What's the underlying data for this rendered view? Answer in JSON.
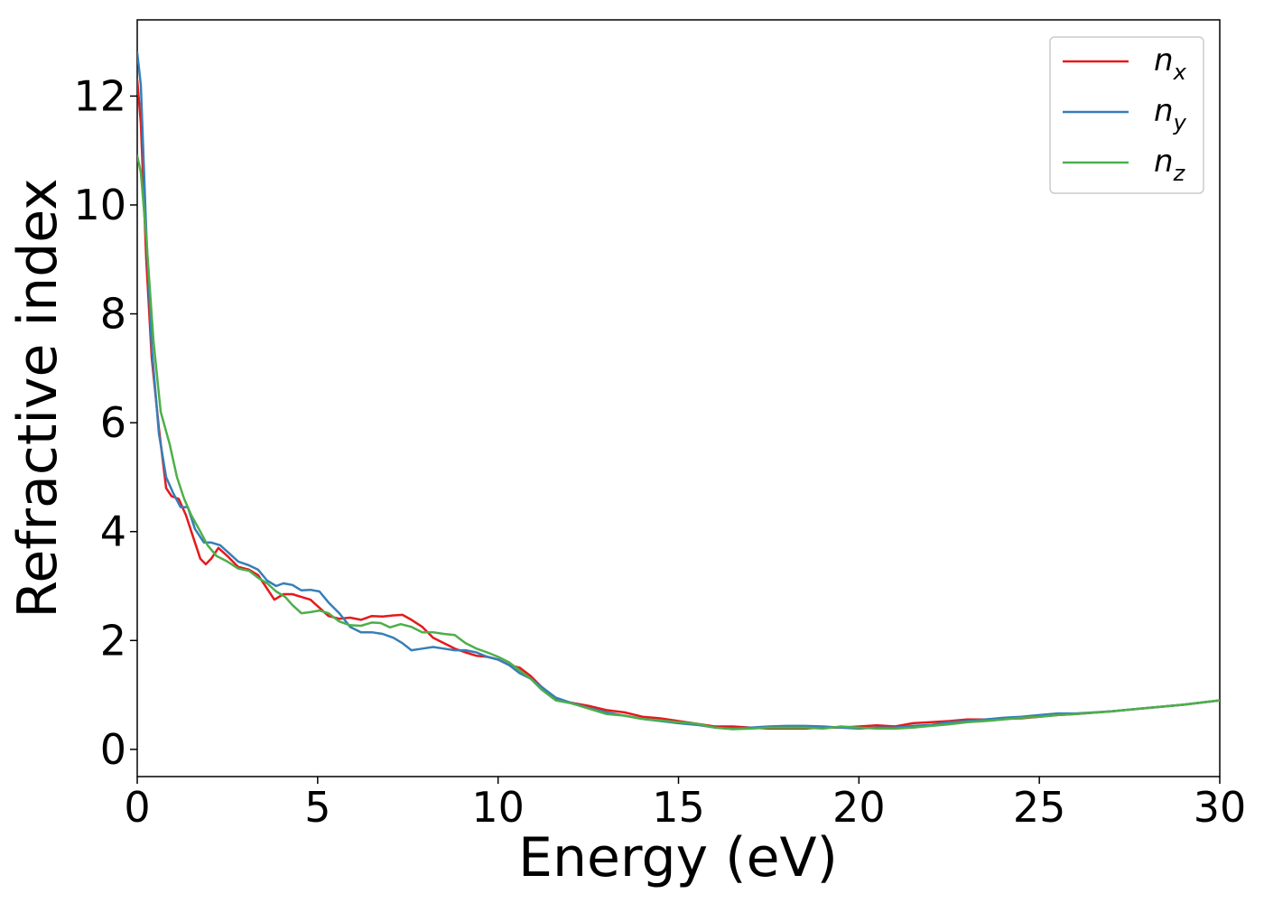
{
  "chart_data": {
    "type": "line",
    "title": "",
    "xlabel": "Energy (eV)",
    "ylabel": "Refractive index",
    "xlim": [
      0,
      30
    ],
    "ylim": [
      -0.5,
      13.4
    ],
    "xticks": [
      0,
      5,
      10,
      15,
      20,
      25,
      30
    ],
    "yticks": [
      0,
      2,
      4,
      6,
      8,
      10,
      12
    ],
    "grid": false,
    "legend_position": "top-right",
    "series": [
      {
        "name": "n",
        "subscript": "x",
        "color": "#e41a1c",
        "points": [
          [
            0,
            12.3
          ],
          [
            0.1,
            11.5
          ],
          [
            0.25,
            9.0
          ],
          [
            0.4,
            7.2
          ],
          [
            0.6,
            5.9
          ],
          [
            0.8,
            4.8
          ],
          [
            0.95,
            4.65
          ],
          [
            1.15,
            4.6
          ],
          [
            1.35,
            4.3
          ],
          [
            1.55,
            3.9
          ],
          [
            1.75,
            3.5
          ],
          [
            1.9,
            3.4
          ],
          [
            2.05,
            3.5
          ],
          [
            2.25,
            3.7
          ],
          [
            2.5,
            3.55
          ],
          [
            2.8,
            3.35
          ],
          [
            3.1,
            3.3
          ],
          [
            3.35,
            3.2
          ],
          [
            3.6,
            2.95
          ],
          [
            3.8,
            2.75
          ],
          [
            4.05,
            2.85
          ],
          [
            4.3,
            2.85
          ],
          [
            4.55,
            2.8
          ],
          [
            4.8,
            2.75
          ],
          [
            5.05,
            2.6
          ],
          [
            5.3,
            2.45
          ],
          [
            5.6,
            2.4
          ],
          [
            5.9,
            2.42
          ],
          [
            6.2,
            2.38
          ],
          [
            6.5,
            2.45
          ],
          [
            6.8,
            2.44
          ],
          [
            7.1,
            2.46
          ],
          [
            7.35,
            2.47
          ],
          [
            7.6,
            2.38
          ],
          [
            7.9,
            2.25
          ],
          [
            8.2,
            2.05
          ],
          [
            8.5,
            1.95
          ],
          [
            8.8,
            1.85
          ],
          [
            9.1,
            1.78
          ],
          [
            9.4,
            1.72
          ],
          [
            9.7,
            1.7
          ],
          [
            10.0,
            1.65
          ],
          [
            10.3,
            1.55
          ],
          [
            10.6,
            1.5
          ],
          [
            10.9,
            1.35
          ],
          [
            11.2,
            1.15
          ],
          [
            11.6,
            0.92
          ],
          [
            12.0,
            0.86
          ],
          [
            12.5,
            0.8
          ],
          [
            13.0,
            0.72
          ],
          [
            13.5,
            0.68
          ],
          [
            14.0,
            0.6
          ],
          [
            14.5,
            0.57
          ],
          [
            15.0,
            0.52
          ],
          [
            15.5,
            0.47
          ],
          [
            16.0,
            0.42
          ],
          [
            16.5,
            0.42
          ],
          [
            17.0,
            0.4
          ],
          [
            17.5,
            0.38
          ],
          [
            18.0,
            0.38
          ],
          [
            18.5,
            0.38
          ],
          [
            19.0,
            0.4
          ],
          [
            19.5,
            0.4
          ],
          [
            20.0,
            0.42
          ],
          [
            20.5,
            0.44
          ],
          [
            21.0,
            0.42
          ],
          [
            21.5,
            0.48
          ],
          [
            22.0,
            0.5
          ],
          [
            22.5,
            0.52
          ],
          [
            23.0,
            0.55
          ],
          [
            23.5,
            0.55
          ],
          [
            24.0,
            0.56
          ],
          [
            24.5,
            0.57
          ],
          [
            25.0,
            0.6
          ],
          [
            25.5,
            0.63
          ],
          [
            26.0,
            0.65
          ],
          [
            27.0,
            0.7
          ],
          [
            28.0,
            0.76
          ],
          [
            29.0,
            0.82
          ],
          [
            30.0,
            0.9
          ]
        ]
      },
      {
        "name": "n",
        "subscript": "y",
        "color": "#377eb8",
        "points": [
          [
            0,
            12.8
          ],
          [
            0.1,
            12.2
          ],
          [
            0.25,
            9.5
          ],
          [
            0.4,
            7.4
          ],
          [
            0.6,
            5.8
          ],
          [
            0.8,
            5.0
          ],
          [
            1.0,
            4.7
          ],
          [
            1.2,
            4.45
          ],
          [
            1.4,
            4.45
          ],
          [
            1.6,
            4.05
          ],
          [
            1.85,
            3.8
          ],
          [
            2.05,
            3.8
          ],
          [
            2.3,
            3.75
          ],
          [
            2.55,
            3.6
          ],
          [
            2.8,
            3.45
          ],
          [
            3.1,
            3.38
          ],
          [
            3.35,
            3.3
          ],
          [
            3.6,
            3.1
          ],
          [
            3.85,
            3.0
          ],
          [
            4.05,
            3.05
          ],
          [
            4.3,
            3.02
          ],
          [
            4.55,
            2.92
          ],
          [
            4.8,
            2.93
          ],
          [
            5.05,
            2.9
          ],
          [
            5.3,
            2.7
          ],
          [
            5.6,
            2.5
          ],
          [
            5.9,
            2.25
          ],
          [
            6.2,
            2.15
          ],
          [
            6.5,
            2.15
          ],
          [
            6.8,
            2.12
          ],
          [
            7.1,
            2.05
          ],
          [
            7.35,
            1.95
          ],
          [
            7.6,
            1.82
          ],
          [
            7.9,
            1.85
          ],
          [
            8.2,
            1.88
          ],
          [
            8.5,
            1.85
          ],
          [
            8.8,
            1.82
          ],
          [
            9.1,
            1.82
          ],
          [
            9.4,
            1.78
          ],
          [
            9.7,
            1.7
          ],
          [
            10.0,
            1.65
          ],
          [
            10.3,
            1.55
          ],
          [
            10.6,
            1.4
          ],
          [
            10.9,
            1.3
          ],
          [
            11.2,
            1.15
          ],
          [
            11.6,
            0.95
          ],
          [
            12.0,
            0.86
          ],
          [
            12.5,
            0.76
          ],
          [
            13.0,
            0.68
          ],
          [
            13.5,
            0.62
          ],
          [
            14.0,
            0.56
          ],
          [
            14.5,
            0.52
          ],
          [
            15.0,
            0.48
          ],
          [
            15.5,
            0.45
          ],
          [
            16.0,
            0.4
          ],
          [
            16.5,
            0.38
          ],
          [
            17.0,
            0.4
          ],
          [
            17.5,
            0.42
          ],
          [
            18.0,
            0.43
          ],
          [
            18.5,
            0.43
          ],
          [
            19.0,
            0.42
          ],
          [
            19.5,
            0.4
          ],
          [
            20.0,
            0.38
          ],
          [
            20.5,
            0.4
          ],
          [
            21.0,
            0.4
          ],
          [
            21.5,
            0.43
          ],
          [
            22.0,
            0.45
          ],
          [
            22.5,
            0.5
          ],
          [
            23.0,
            0.52
          ],
          [
            23.5,
            0.55
          ],
          [
            24.0,
            0.58
          ],
          [
            24.5,
            0.6
          ],
          [
            25.0,
            0.63
          ],
          [
            25.5,
            0.66
          ],
          [
            26.0,
            0.66
          ],
          [
            27.0,
            0.7
          ],
          [
            28.0,
            0.76
          ],
          [
            29.0,
            0.82
          ],
          [
            30.0,
            0.9
          ]
        ]
      },
      {
        "name": "n",
        "subscript": "z",
        "color": "#4daf4a",
        "points": [
          [
            0,
            10.9
          ],
          [
            0.1,
            10.6
          ],
          [
            0.25,
            9.4
          ],
          [
            0.45,
            7.5
          ],
          [
            0.65,
            6.2
          ],
          [
            0.9,
            5.6
          ],
          [
            1.1,
            5.0
          ],
          [
            1.3,
            4.6
          ],
          [
            1.5,
            4.3
          ],
          [
            1.75,
            4.0
          ],
          [
            1.95,
            3.75
          ],
          [
            2.2,
            3.55
          ],
          [
            2.5,
            3.45
          ],
          [
            2.8,
            3.32
          ],
          [
            3.1,
            3.28
          ],
          [
            3.35,
            3.15
          ],
          [
            3.6,
            3.05
          ],
          [
            3.85,
            2.9
          ],
          [
            4.1,
            2.8
          ],
          [
            4.3,
            2.65
          ],
          [
            4.55,
            2.5
          ],
          [
            4.8,
            2.52
          ],
          [
            5.05,
            2.55
          ],
          [
            5.3,
            2.5
          ],
          [
            5.6,
            2.35
          ],
          [
            5.9,
            2.28
          ],
          [
            6.2,
            2.27
          ],
          [
            6.5,
            2.33
          ],
          [
            6.75,
            2.32
          ],
          [
            7.0,
            2.24
          ],
          [
            7.3,
            2.3
          ],
          [
            7.6,
            2.25
          ],
          [
            7.9,
            2.15
          ],
          [
            8.2,
            2.15
          ],
          [
            8.5,
            2.12
          ],
          [
            8.8,
            2.1
          ],
          [
            9.1,
            1.95
          ],
          [
            9.4,
            1.85
          ],
          [
            9.7,
            1.78
          ],
          [
            10.0,
            1.7
          ],
          [
            10.3,
            1.6
          ],
          [
            10.6,
            1.45
          ],
          [
            10.9,
            1.3
          ],
          [
            11.2,
            1.1
          ],
          [
            11.6,
            0.9
          ],
          [
            12.0,
            0.85
          ],
          [
            12.5,
            0.75
          ],
          [
            13.0,
            0.65
          ],
          [
            13.5,
            0.62
          ],
          [
            14.0,
            0.56
          ],
          [
            14.5,
            0.53
          ],
          [
            15.0,
            0.5
          ],
          [
            15.5,
            0.47
          ],
          [
            16.0,
            0.4
          ],
          [
            16.5,
            0.37
          ],
          [
            17.0,
            0.38
          ],
          [
            17.5,
            0.4
          ],
          [
            18.0,
            0.4
          ],
          [
            18.5,
            0.4
          ],
          [
            19.0,
            0.38
          ],
          [
            19.5,
            0.42
          ],
          [
            20.0,
            0.4
          ],
          [
            20.5,
            0.38
          ],
          [
            21.0,
            0.38
          ],
          [
            21.5,
            0.4
          ],
          [
            22.0,
            0.43
          ],
          [
            22.5,
            0.46
          ],
          [
            23.0,
            0.5
          ],
          [
            23.5,
            0.52
          ],
          [
            24.0,
            0.55
          ],
          [
            24.5,
            0.58
          ],
          [
            25.0,
            0.6
          ],
          [
            25.5,
            0.63
          ],
          [
            26.0,
            0.65
          ],
          [
            27.0,
            0.7
          ],
          [
            28.0,
            0.76
          ],
          [
            29.0,
            0.82
          ],
          [
            30.0,
            0.9
          ]
        ]
      }
    ]
  }
}
